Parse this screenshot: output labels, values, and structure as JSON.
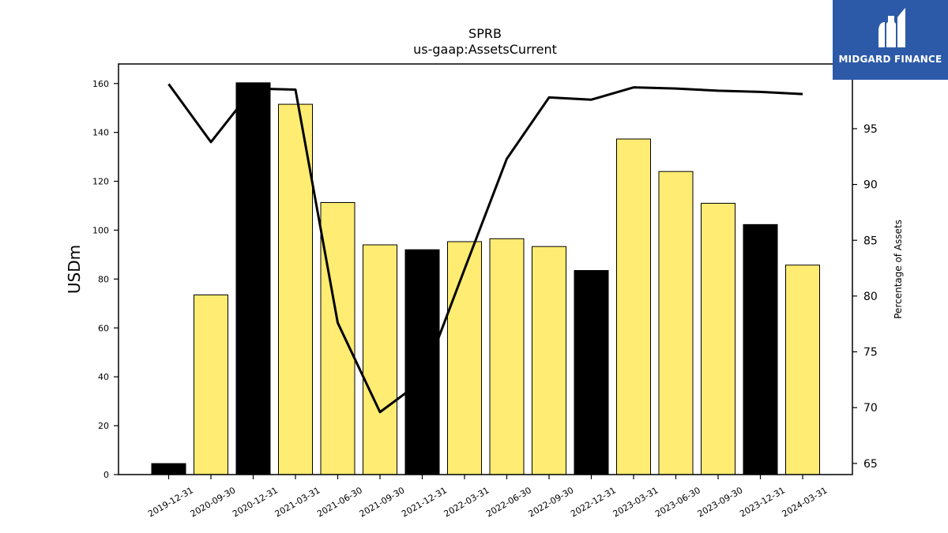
{
  "chart_data": {
    "type": "bar",
    "title": "SPRB",
    "subtitle": "us-gaap:AssetsCurrent",
    "ylabel": "USDm",
    "y2label": "Percentage of Assets",
    "ylim": [
      0,
      168
    ],
    "y2lim": [
      64,
      100.8
    ],
    "yticks": [
      0,
      20,
      40,
      60,
      80,
      100,
      120,
      140,
      160
    ],
    "y2ticks": [
      65,
      70,
      75,
      80,
      85,
      90,
      95
    ],
    "categories": [
      "2019-12-31",
      "2020-09-30",
      "2020-12-31",
      "2021-03-31",
      "2021-06-30",
      "2021-09-30",
      "2021-12-31",
      "2022-03-31",
      "2022-06-30",
      "2022-09-30",
      "2022-12-31",
      "2023-03-31",
      "2023-06-30",
      "2023-09-30",
      "2023-12-31",
      "2024-03-31"
    ],
    "series": [
      {
        "type": "bar",
        "values": [
          4.5,
          73.5,
          160.3,
          151.5,
          111.3,
          94.0,
          92.0,
          95.3,
          96.5,
          93.3,
          83.5,
          137.3,
          124.0,
          111.0,
          102.3,
          85.7
        ],
        "colors": [
          "#000000",
          "#ffec72",
          "#000000",
          "#ffec72",
          "#ffec72",
          "#ffec72",
          "#000000",
          "#ffec72",
          "#ffec72",
          "#ffec72",
          "#000000",
          "#ffec72",
          "#ffec72",
          "#ffec72",
          "#000000",
          "#ffec72"
        ],
        "axis": "left"
      },
      {
        "type": "line",
        "values": [
          99.0,
          93.8,
          98.6,
          98.5,
          77.6,
          69.6,
          72.4,
          82.4,
          92.3,
          97.8,
          97.6,
          98.7,
          98.6,
          98.4,
          98.3,
          98.1
        ],
        "color": "#000000",
        "axis": "right"
      }
    ],
    "grid": false
  },
  "logo": {
    "text": "MIDGARD FINANCE",
    "bg": "#2d5aa8"
  }
}
